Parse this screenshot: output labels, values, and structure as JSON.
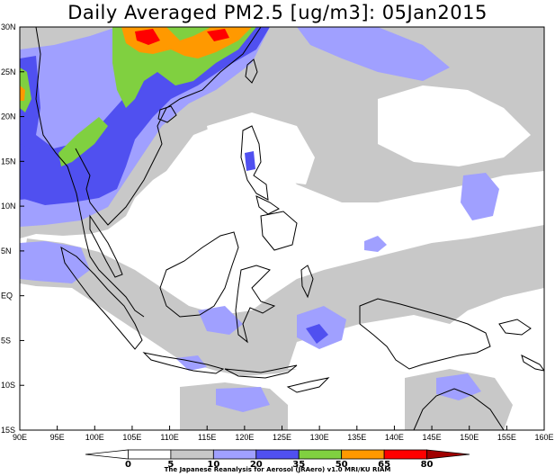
{
  "title": "Daily Averaged PM2.5 [ug/m3]: 05Jan2015",
  "map": {
    "lon_labels": [
      "90E",
      "95E",
      "100E",
      "105E",
      "110E",
      "115E",
      "120E",
      "125E",
      "130E",
      "135E",
      "140E",
      "145E",
      "150E",
      "155E",
      "160E"
    ],
    "lat_labels": [
      "30N",
      "25N",
      "20N",
      "15N",
      "10N",
      "5N",
      "EQ",
      "5S",
      "10S",
      "15S"
    ],
    "lon_range": [
      90,
      160
    ],
    "lat_range": [
      -15,
      30
    ],
    "region": "Southeast Asia",
    "field": "PM2.5 concentration",
    "date": "05Jan2015"
  },
  "colorbar": {
    "levels": [
      "0",
      "5",
      "10",
      "20",
      "35",
      "50",
      "65",
      "80"
    ],
    "colors": [
      "#ffffff",
      "#ffffff",
      "#c8c8c8",
      "#a0a0ff",
      "#5050f0",
      "#80d040",
      "#ff9900",
      "#ff0000",
      "#a00000"
    ]
  },
  "credit": "The Japanese Reanalysis for Aerosol (JRAero) v1.0 MRI/KU RIAM",
  "colors": {
    "land_outline": "#000000",
    "grey_band": "#c8c8c8",
    "light_blue": "#a0a0ff",
    "blue": "#5050f0",
    "green": "#80d040",
    "orange": "#ff9900",
    "red": "#ff0000"
  }
}
